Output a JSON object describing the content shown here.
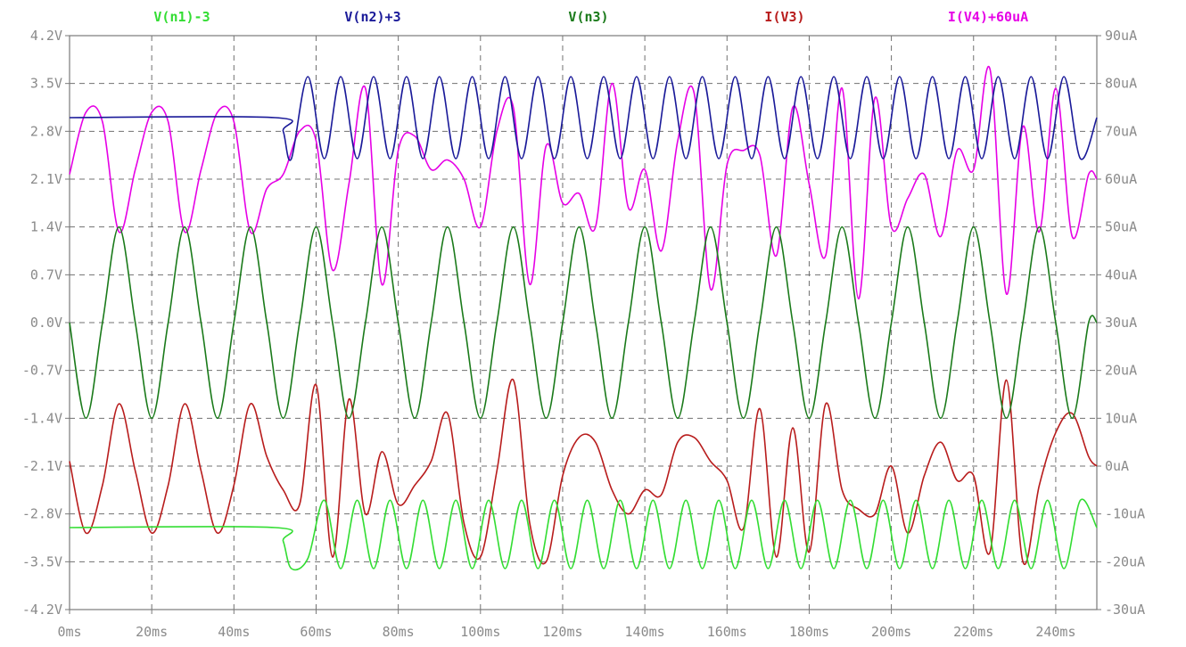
{
  "chart_data": {
    "type": "line",
    "xlabel": "",
    "ylabel_left": "",
    "ylabel_right": "",
    "xlim": [
      0,
      250
    ],
    "ylim_left": [
      -4.2,
      4.2
    ],
    "ylim_right": [
      -30,
      90
    ],
    "x_ticks": [
      "0ms",
      "20ms",
      "40ms",
      "60ms",
      "80ms",
      "100ms",
      "120ms",
      "140ms",
      "160ms",
      "180ms",
      "200ms",
      "220ms",
      "240ms"
    ],
    "x_tick_values": [
      0,
      20,
      40,
      60,
      80,
      100,
      120,
      140,
      160,
      180,
      200,
      220,
      240
    ],
    "y_left_ticks": [
      "4.2V",
      "3.5V",
      "2.8V",
      "2.1V",
      "1.4V",
      "0.7V",
      "0.0V",
      "-0.7V",
      "-1.4V",
      "-2.1V",
      "-2.8V",
      "-3.5V",
      "-4.2V"
    ],
    "y_left_tick_values": [
      4.2,
      3.5,
      2.8,
      2.1,
      1.4,
      0.7,
      0.0,
      -0.7,
      -1.4,
      -2.1,
      -2.8,
      -3.5,
      -4.2
    ],
    "y_right_ticks": [
      "90uA",
      "80uA",
      "70uA",
      "60uA",
      "50uA",
      "40uA",
      "30uA",
      "20uA",
      "10uA",
      "0uA",
      "-10uA",
      "-20uA",
      "-30uA"
    ],
    "y_right_tick_values": [
      90,
      80,
      70,
      60,
      50,
      40,
      30,
      20,
      10,
      0,
      -10,
      -20,
      -30
    ],
    "grid": true,
    "legend": "top",
    "series": [
      {
        "name": "V(n1)-3",
        "color": "#33dd33",
        "axis": "left",
        "x": [
          0,
          50,
          52,
          54,
          58,
          62,
          66,
          70,
          74,
          78,
          82,
          86,
          90,
          94,
          98,
          102,
          106,
          110,
          114,
          118,
          122,
          126,
          130,
          134,
          138,
          142,
          146,
          150,
          154,
          158,
          162,
          166,
          170,
          174,
          178,
          182,
          186,
          190,
          194,
          198,
          202,
          206,
          210,
          214,
          218,
          222,
          226,
          230,
          234,
          238,
          242,
          246,
          250
        ],
        "y": [
          -3.0,
          -3.0,
          -3.2,
          -3.6,
          -3.45,
          -2.6,
          -3.6,
          -2.6,
          -3.6,
          -2.6,
          -3.6,
          -2.6,
          -3.6,
          -2.6,
          -3.6,
          -2.6,
          -3.6,
          -2.6,
          -3.6,
          -2.6,
          -3.6,
          -2.6,
          -3.6,
          -2.6,
          -3.6,
          -2.6,
          -3.6,
          -2.6,
          -3.6,
          -2.6,
          -3.6,
          -2.6,
          -3.6,
          -2.6,
          -3.6,
          -2.6,
          -3.6,
          -2.6,
          -3.6,
          -2.6,
          -3.6,
          -2.6,
          -3.6,
          -2.6,
          -3.6,
          -2.6,
          -3.6,
          -2.6,
          -3.6,
          -2.6,
          -3.6,
          -2.6,
          -3.0
        ]
      },
      {
        "name": "V(n2)+3",
        "color": "#1a1a99",
        "axis": "left",
        "x": [
          0,
          50,
          52,
          54,
          58,
          62,
          66,
          70,
          74,
          78,
          82,
          86,
          90,
          94,
          98,
          102,
          106,
          110,
          114,
          118,
          122,
          126,
          130,
          134,
          138,
          142,
          146,
          150,
          154,
          158,
          162,
          166,
          170,
          174,
          178,
          182,
          186,
          190,
          194,
          198,
          202,
          206,
          210,
          214,
          218,
          222,
          226,
          230,
          234,
          238,
          242,
          246,
          250
        ],
        "y": [
          3.0,
          3.0,
          2.8,
          2.4,
          3.6,
          2.4,
          3.6,
          2.4,
          3.6,
          2.4,
          3.6,
          2.4,
          3.6,
          2.4,
          3.6,
          2.4,
          3.6,
          2.4,
          3.6,
          2.4,
          3.6,
          2.4,
          3.6,
          2.4,
          3.6,
          2.4,
          3.6,
          2.4,
          3.6,
          2.4,
          3.6,
          2.4,
          3.6,
          2.4,
          3.6,
          2.4,
          3.6,
          2.4,
          3.6,
          2.4,
          3.6,
          2.4,
          3.6,
          2.4,
          3.6,
          2.4,
          3.6,
          2.4,
          3.6,
          2.4,
          3.6,
          2.4,
          3.0
        ]
      },
      {
        "name": "V(n3)",
        "color": "#1a7a1a",
        "axis": "left",
        "x": [
          0,
          4,
          8,
          12,
          16,
          20,
          24,
          28,
          32,
          36,
          40,
          44,
          48,
          52,
          56,
          60,
          64,
          68,
          72,
          76,
          80,
          84,
          88,
          92,
          96,
          100,
          104,
          108,
          112,
          116,
          120,
          124,
          128,
          132,
          136,
          140,
          144,
          148,
          152,
          156,
          160,
          164,
          168,
          172,
          176,
          180,
          184,
          188,
          192,
          196,
          200,
          204,
          208,
          212,
          216,
          220,
          224,
          228,
          232,
          236,
          240,
          244,
          248,
          250
        ],
        "y": [
          0.0,
          -1.4,
          0.0,
          1.4,
          0.0,
          -1.4,
          0.0,
          1.4,
          0.0,
          -1.4,
          0.0,
          1.4,
          0.0,
          -1.4,
          0.0,
          1.4,
          0.0,
          -1.4,
          0.0,
          1.4,
          0.0,
          -1.4,
          0.0,
          1.4,
          0.0,
          -1.4,
          0.0,
          1.4,
          0.0,
          -1.4,
          0.0,
          1.4,
          0.0,
          -1.4,
          0.0,
          1.4,
          0.0,
          -1.4,
          0.0,
          1.4,
          0.0,
          -1.4,
          0.0,
          1.4,
          0.0,
          -1.4,
          0.0,
          1.4,
          0.0,
          -1.4,
          0.0,
          1.4,
          0.0,
          -1.4,
          0.0,
          1.4,
          0.0,
          -1.4,
          0.0,
          1.4,
          0.0,
          -1.4,
          0.0,
          0.0
        ]
      },
      {
        "name": "I(V3)",
        "color": "#b81c1c",
        "axis": "right",
        "x": [
          0,
          4,
          8,
          12,
          16,
          20,
          24,
          28,
          32,
          36,
          40,
          44,
          48,
          52,
          56,
          60,
          64,
          68,
          72,
          76,
          80,
          84,
          88,
          92,
          96,
          100,
          104,
          108,
          112,
          116,
          120,
          124,
          128,
          132,
          136,
          140,
          144,
          148,
          152,
          156,
          160,
          164,
          168,
          172,
          176,
          180,
          184,
          188,
          192,
          196,
          200,
          204,
          208,
          212,
          216,
          220,
          224,
          228,
          232,
          236,
          240,
          244,
          248,
          250
        ],
        "y": [
          1,
          -14,
          -4,
          13,
          -1,
          -14,
          -4,
          13,
          -1,
          -14,
          -4,
          13,
          2,
          -5,
          -8,
          17,
          -19,
          14,
          -10,
          3,
          -8,
          -4,
          1,
          11,
          -12,
          -19,
          -1,
          18,
          -12,
          -20,
          -2,
          6,
          5,
          -5,
          -10,
          -5,
          -6,
          5,
          6,
          1,
          -3,
          -13,
          12,
          -19,
          8,
          -18,
          13,
          -5,
          -9,
          -10,
          0,
          -14,
          -2,
          5,
          -3,
          -2,
          -18,
          18,
          -20,
          -4,
          7,
          11,
          2,
          0
        ]
      },
      {
        "name": "I(V4)+60uA",
        "color": "#e600e6",
        "axis": "right",
        "x": [
          0,
          4,
          8,
          12,
          16,
          20,
          24,
          28,
          32,
          36,
          40,
          44,
          48,
          52,
          56,
          60,
          64,
          68,
          72,
          76,
          80,
          84,
          88,
          92,
          96,
          100,
          104,
          108,
          112,
          116,
          120,
          124,
          128,
          132,
          136,
          140,
          144,
          148,
          152,
          156,
          160,
          164,
          168,
          172,
          176,
          180,
          184,
          188,
          192,
          196,
          200,
          204,
          208,
          212,
          216,
          220,
          224,
          228,
          232,
          236,
          240,
          244,
          248,
          250
        ],
        "y": [
          61,
          74,
          72,
          49,
          62,
          74,
          72,
          49,
          62,
          74,
          72,
          49,
          58,
          61,
          70,
          68,
          41,
          59,
          79,
          38,
          66,
          69,
          62,
          64,
          60,
          50,
          70,
          75,
          38,
          67,
          55,
          57,
          50,
          80,
          54,
          62,
          45,
          68,
          78,
          37,
          63,
          66,
          65,
          44,
          75,
          59,
          44,
          79,
          35,
          77,
          50,
          56,
          61,
          48,
          66,
          62,
          83,
          36,
          71,
          49,
          79,
          48,
          61,
          60
        ]
      }
    ]
  }
}
